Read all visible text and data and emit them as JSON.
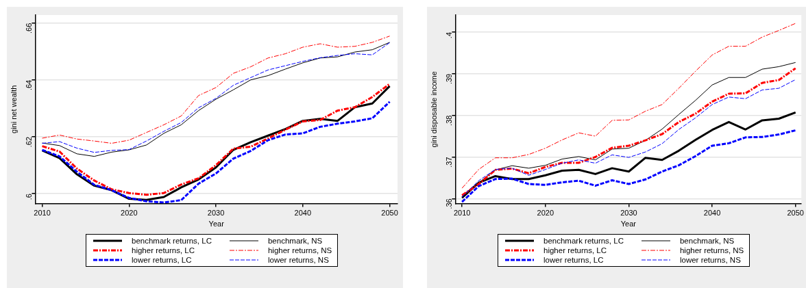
{
  "chart_data": [
    {
      "type": "line",
      "xlabel": "Year",
      "ylabel": "gini net wealth",
      "x": [
        2010,
        2012,
        2014,
        2016,
        2018,
        2020,
        2022,
        2024,
        2026,
        2028,
        2030,
        2032,
        2034,
        2036,
        2038,
        2040,
        2042,
        2044,
        2046,
        2048,
        2050
      ],
      "xlim": [
        2009.2,
        2050.9
      ],
      "xticks": [
        2010,
        2020,
        2030,
        2040,
        2050
      ],
      "ylim": [
        0.5965,
        0.6628
      ],
      "yticks": [
        {
          "value": 0.6,
          "label": ".6"
        },
        {
          "value": 0.62,
          "label": ".62"
        },
        {
          "value": 0.64,
          "label": ".64"
        },
        {
          "value": 0.66,
          "label": ".66"
        }
      ],
      "grid": "y",
      "legend": "bottom",
      "series": [
        {
          "name": "benchmark returns, LC",
          "color": "#000000",
          "line_style": "solid",
          "values": [
            0.6152,
            0.6125,
            0.6068,
            0.6028,
            0.6012,
            0.5982,
            0.5978,
            0.5988,
            0.6022,
            0.605,
            0.6092,
            0.6154,
            0.6181,
            0.6204,
            0.6227,
            0.6256,
            0.6263,
            0.6256,
            0.6304,
            0.6317,
            0.6378
          ]
        },
        {
          "name": "benchmark, NS",
          "color": "#000000",
          "line_style": "solid",
          "values": [
            0.6178,
            0.6169,
            0.614,
            0.6131,
            0.6146,
            0.6154,
            0.6171,
            0.6212,
            0.6242,
            0.6292,
            0.6332,
            0.6365,
            0.64,
            0.6415,
            0.6438,
            0.646,
            0.6477,
            0.6481,
            0.6498,
            0.6506,
            0.6532
          ]
        },
        {
          "name": "higher returns, LC",
          "color": "#ff0000",
          "line_style": "dashdot",
          "values": [
            0.6167,
            0.6148,
            0.6088,
            0.6046,
            0.6015,
            0.6002,
            0.5996,
            0.6002,
            0.6032,
            0.6054,
            0.61,
            0.6158,
            0.6165,
            0.6194,
            0.6225,
            0.6254,
            0.6259,
            0.6292,
            0.6304,
            0.634,
            0.6386
          ]
        },
        {
          "name": "higher returns, NS",
          "color": "#ff0000",
          "line_style": "dashdot",
          "values": [
            0.6195,
            0.6206,
            0.6192,
            0.6185,
            0.6177,
            0.6188,
            0.6215,
            0.6242,
            0.6273,
            0.6345,
            0.6373,
            0.6423,
            0.6446,
            0.6477,
            0.6492,
            0.6515,
            0.6527,
            0.6515,
            0.6518,
            0.6532,
            0.6554
          ]
        },
        {
          "name": "lower returns, LC",
          "color": "#0000ff",
          "line_style": "dashed",
          "values": [
            0.6154,
            0.6131,
            0.6077,
            0.6031,
            0.6012,
            0.5985,
            0.5973,
            0.5969,
            0.5977,
            0.6035,
            0.6071,
            0.6123,
            0.615,
            0.6188,
            0.6208,
            0.6212,
            0.6235,
            0.6246,
            0.6254,
            0.6265,
            0.6323
          ]
        },
        {
          "name": "lower returns, NS",
          "color": "#0000ff",
          "line_style": "dashed",
          "values": [
            0.6177,
            0.6183,
            0.616,
            0.6145,
            0.6152,
            0.6155,
            0.6185,
            0.6219,
            0.625,
            0.6302,
            0.6335,
            0.6381,
            0.6408,
            0.6435,
            0.645,
            0.6465,
            0.6478,
            0.6486,
            0.6492,
            0.6488,
            0.6531
          ]
        }
      ]
    },
    {
      "type": "line",
      "xlabel": "Year",
      "ylabel": "gini disposable income",
      "x": [
        2010,
        2012,
        2014,
        2016,
        2018,
        2020,
        2022,
        2024,
        2026,
        2028,
        2030,
        2032,
        2034,
        2036,
        2038,
        2040,
        2042,
        2044,
        2046,
        2048,
        2050
      ],
      "xlim": [
        2009.2,
        2050.7
      ],
      "xticks": [
        2010,
        2020,
        2030,
        2040,
        2050
      ],
      "ylim": [
        0.3588,
        0.4041
      ],
      "yticks": [
        {
          "value": 0.36,
          "label": ".36"
        },
        {
          "value": 0.37,
          "label": ".37"
        },
        {
          "value": 0.38,
          "label": ".38"
        },
        {
          "value": 0.39,
          "label": ".39"
        },
        {
          "value": 0.4,
          "label": ".4"
        }
      ],
      "grid": "y",
      "legend": "bottom",
      "series": [
        {
          "name": "benchmark returns, LC",
          "color": "#000000",
          "line_style": "solid",
          "values": [
            0.3602,
            0.3638,
            0.3654,
            0.3647,
            0.3647,
            0.3656,
            0.3667,
            0.3669,
            0.3659,
            0.3673,
            0.3665,
            0.3698,
            0.3693,
            0.3715,
            0.3741,
            0.3765,
            0.3784,
            0.3766,
            0.3788,
            0.3792,
            0.3807
          ]
        },
        {
          "name": "benchmark, NS",
          "color": "#000000",
          "line_style": "solid",
          "values": [
            0.3607,
            0.3638,
            0.3669,
            0.3679,
            0.3673,
            0.368,
            0.3695,
            0.3701,
            0.3693,
            0.3719,
            0.3721,
            0.374,
            0.3767,
            0.3802,
            0.3836,
            0.3873,
            0.3891,
            0.3891,
            0.3911,
            0.3917,
            0.3927
          ]
        },
        {
          "name": "higher returns, LC",
          "color": "#ff0000",
          "line_style": "dashdot",
          "values": [
            0.3608,
            0.3635,
            0.3669,
            0.3672,
            0.3661,
            0.3676,
            0.3686,
            0.3686,
            0.37,
            0.3722,
            0.3727,
            0.374,
            0.3755,
            0.3784,
            0.3804,
            0.3833,
            0.3852,
            0.3853,
            0.3878,
            0.3885,
            0.3913
          ]
        },
        {
          "name": "higher returns, NS",
          "color": "#ff0000",
          "line_style": "dashdot",
          "values": [
            0.3625,
            0.367,
            0.3698,
            0.3698,
            0.3706,
            0.3721,
            0.3741,
            0.3758,
            0.375,
            0.3788,
            0.3789,
            0.381,
            0.3826,
            0.3865,
            0.3906,
            0.3945,
            0.3966,
            0.3966,
            0.3988,
            0.4004,
            0.4021
          ]
        },
        {
          "name": "lower returns, LC",
          "color": "#0000ff",
          "line_style": "dashed",
          "values": [
            0.3592,
            0.363,
            0.3647,
            0.3648,
            0.3635,
            0.3633,
            0.3639,
            0.3643,
            0.3631,
            0.3644,
            0.3635,
            0.3646,
            0.3665,
            0.368,
            0.3702,
            0.3727,
            0.3733,
            0.3747,
            0.3748,
            0.3754,
            0.3764
          ]
        },
        {
          "name": "lower returns, NS",
          "color": "#0000ff",
          "line_style": "dashed",
          "values": [
            0.3604,
            0.3643,
            0.367,
            0.3673,
            0.3656,
            0.367,
            0.3685,
            0.3693,
            0.3685,
            0.3705,
            0.3699,
            0.3712,
            0.3732,
            0.3766,
            0.3794,
            0.3826,
            0.3844,
            0.384,
            0.3861,
            0.3865,
            0.3886
          ]
        }
      ]
    }
  ]
}
